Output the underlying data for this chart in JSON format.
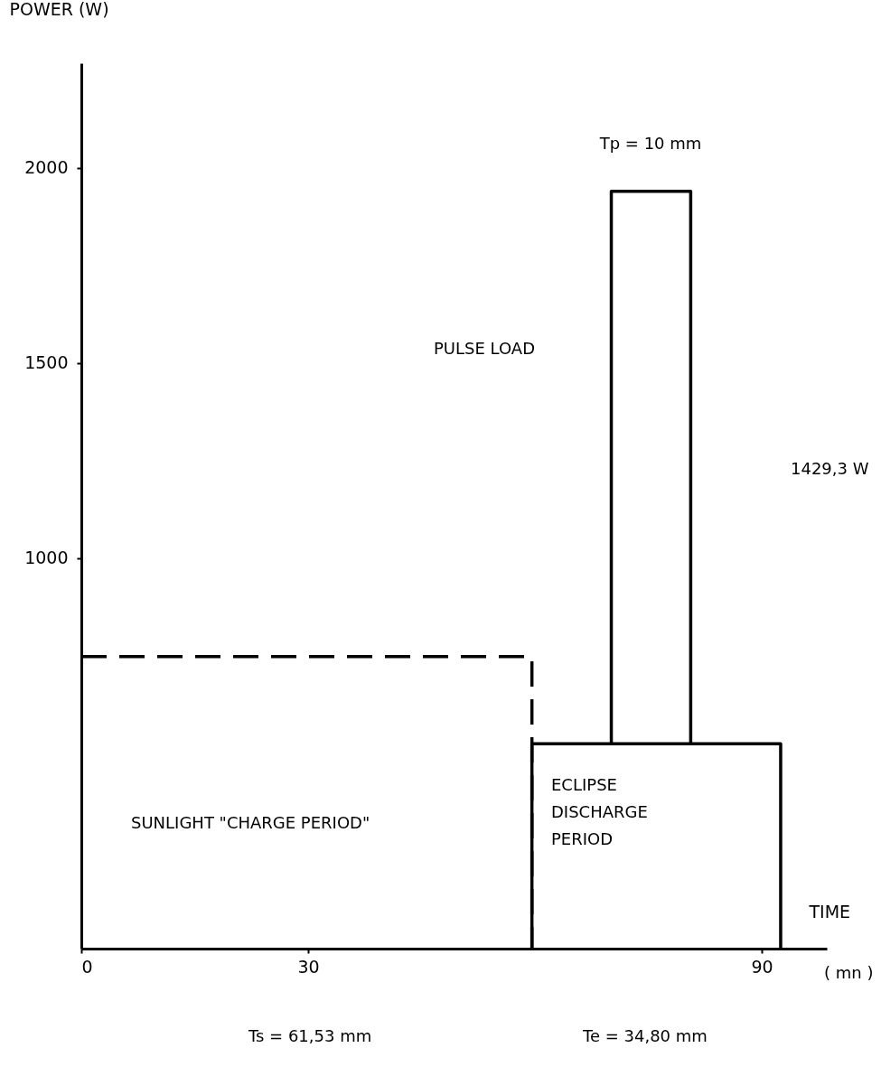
{
  "chart_data": {
    "type": "line",
    "ylabel": "POWER (W)",
    "xlabel": "TIME",
    "xlim": [
      0,
      98.6
    ],
    "xticks": [
      0,
      30,
      90
    ],
    "ylim": [
      0,
      2268
    ],
    "yticks": [
      1000,
      1500,
      2000
    ],
    "grid": false,
    "marker": "none",
    "series": [
      {
        "color": "#000000",
        "line_style": "dashed",
        "x": [
          0,
          59.6,
          59.6
        ],
        "values": [
          748,
          748,
          0
        ]
      },
      {
        "color": "#000000",
        "line_style": "solid",
        "x": [
          59.6,
          59.6,
          92.5,
          92.5
        ],
        "values": [
          0,
          525,
          525,
          0
        ]
      },
      {
        "color": "#000000",
        "line_style": "solid",
        "x": [
          70.1,
          70.1,
          80.6,
          80.6
        ],
        "values": [
          525,
          1940,
          1940,
          525
        ]
      }
    ],
    "annotations": [
      "PULSE LOAD",
      "Tp = 10 mm",
      "1429,3 W",
      "SUNLIGHT \"CHARGE PERIOD\"",
      "ECLIPSE DISCHARGE PERIOD",
      "( mn )",
      "Ts = 61,53 mm",
      "Te = 34,80 mm"
    ]
  }
}
